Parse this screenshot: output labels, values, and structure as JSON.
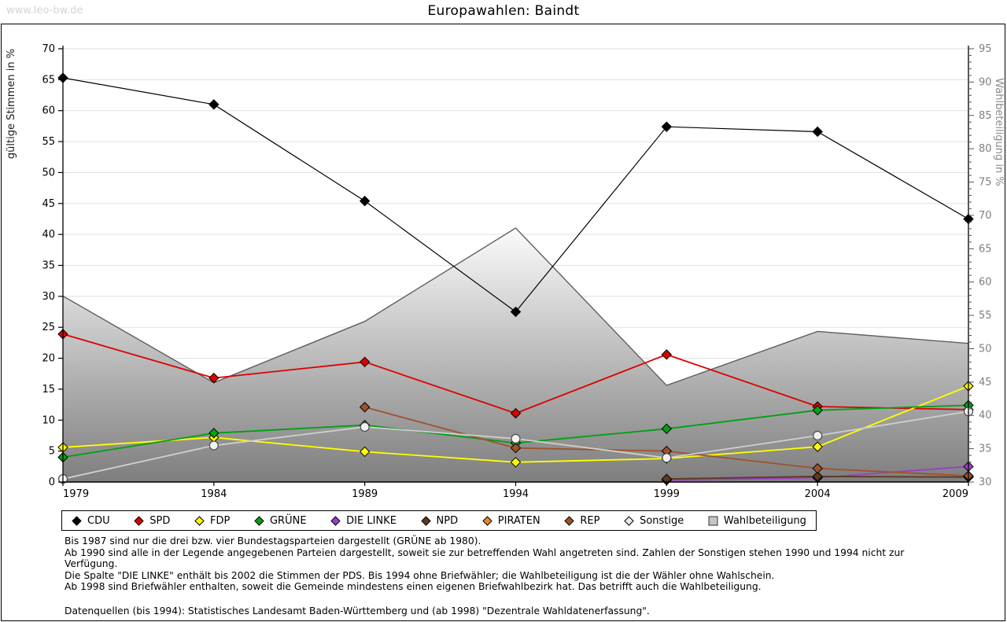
{
  "watermark": "www.leo-bw.de",
  "title": "Europawahlen: Baindt",
  "chart_data": {
    "type": "line",
    "x": [
      1979,
      1984,
      1989,
      1994,
      1999,
      2004,
      2009
    ],
    "left_axis": {
      "label": "gültige Stimmen in %",
      "min": 0,
      "max": 70,
      "step": 5
    },
    "right_axis": {
      "label": "Wahlbeteiligung in %",
      "min": 30,
      "max": 95,
      "step": 5,
      "minor_step": 1
    },
    "grid": true,
    "legend_position": "bottom",
    "series": [
      {
        "name": "CDU",
        "type": "line",
        "axis": "left",
        "color": "#000000",
        "marker": "diamond",
        "values": [
          65.3,
          61.0,
          45.4,
          27.5,
          57.4,
          56.6,
          42.5
        ]
      },
      {
        "name": "SPD",
        "type": "line",
        "axis": "left",
        "color": "#dd0000",
        "marker": "diamond",
        "values": [
          23.9,
          16.8,
          19.4,
          11.1,
          20.6,
          12.2,
          11.7
        ]
      },
      {
        "name": "FDP",
        "type": "line",
        "axis": "left",
        "color": "#ffff00",
        "marker": "diamond",
        "values": [
          5.6,
          7.2,
          4.9,
          3.2,
          3.8,
          5.7,
          15.5
        ]
      },
      {
        "name": "GRÜNE",
        "type": "line",
        "axis": "left",
        "color": "#00a013",
        "marker": "diamond",
        "values": [
          4.0,
          7.9,
          9.2,
          6.3,
          8.6,
          11.6,
          12.4
        ]
      },
      {
        "name": "DIE LINKE",
        "type": "line",
        "axis": "left",
        "color": "#9b3fc4",
        "marker": "diamond",
        "values": [
          null,
          null,
          null,
          null,
          0.3,
          0.7,
          2.5
        ]
      },
      {
        "name": "NPD",
        "type": "line",
        "axis": "left",
        "color": "#5b3a1e",
        "marker": "diamond",
        "values": [
          null,
          null,
          null,
          null,
          0.5,
          0.9,
          0.8
        ]
      },
      {
        "name": "PIRATEN",
        "type": "line",
        "axis": "left",
        "color": "#e8862d",
        "marker": "diamond",
        "values": [
          null,
          null,
          null,
          null,
          null,
          null,
          0.9
        ]
      },
      {
        "name": "REP",
        "type": "line",
        "axis": "left",
        "color": "#a0522d",
        "marker": "diamond",
        "values": [
          null,
          null,
          12.1,
          5.5,
          5.0,
          2.2,
          1.0
        ]
      },
      {
        "name": "Sonstige",
        "type": "line",
        "axis": "left",
        "color": "#d6d6d6",
        "marker": "circle",
        "values": [
          0.5,
          5.9,
          8.9,
          7.0,
          3.9,
          7.5,
          11.4
        ]
      },
      {
        "name": "Wahlbeteiligung",
        "type": "area",
        "axis": "right",
        "color": "#aaaaaa",
        "marker": "none",
        "values": [
          57.9,
          44.9,
          54.1,
          68.1,
          44.5,
          52.6,
          50.8
        ]
      }
    ]
  },
  "footnotes": [
    "Bis 1987 sind nur die drei bzw. vier Bundestagsparteien dargestellt (GRÜNE ab 1980).",
    "Ab 1990 sind alle in der Legende angegebenen Parteien dargestellt, soweit sie zur betreffenden Wahl angetreten sind. Zahlen der Sonstigen stehen 1990 und 1994 nicht zur Verfügung.",
    "Die Spalte \"DIE LINKE\" enthält bis 2002 die Stimmen der PDS. Bis 1994 ohne Briefwähler; die Wahlbeteiligung ist die der Wähler ohne Wahlschein.",
    "Ab 1998 sind Briefwähler enthalten, soweit die Gemeinde mindestens einen eigenen Briefwahlbezirk hat. Das betrifft auch die Wahlbeteiligung.",
    "Datenquellen (bis 1994): Statistisches Landesamt Baden-Württemberg und (ab 1998) \"Dezentrale Wahldatenerfassung\"."
  ]
}
